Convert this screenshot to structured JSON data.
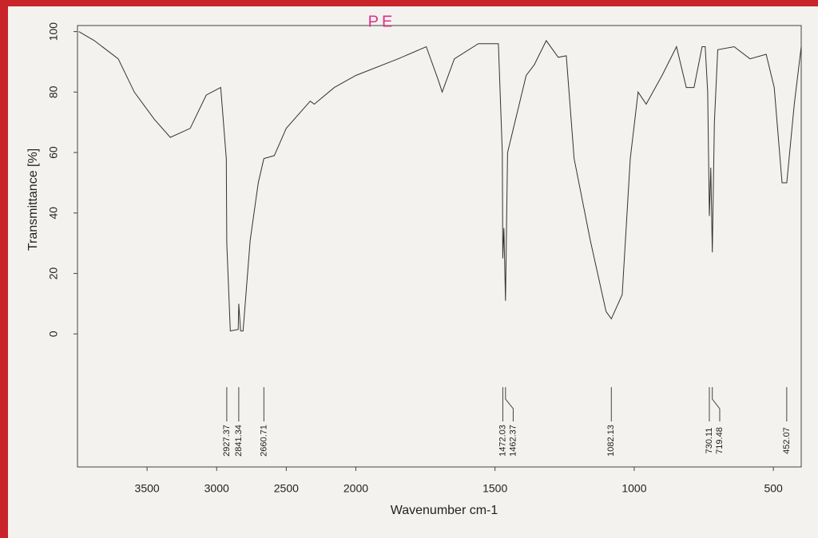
{
  "chart_data": {
    "type": "line",
    "title": "PE",
    "x_label": "Wavenumber cm-1",
    "y_label": "Transmittance [%]",
    "x": [
      3990,
      3879,
      3707,
      3592,
      3448,
      3333,
      3190,
      3075,
      2971,
      2931,
      2927.37,
      2902,
      2845,
      2841.34,
      2828,
      2810,
      2759,
      2701,
      2660.71,
      2586,
      2500,
      2328,
      2299,
      2155,
      2000,
      1848,
      1747,
      1704,
      1690,
      1646,
      1560,
      1488,
      1474,
      1472.03,
      1468,
      1462.37,
      1455,
      1388,
      1359,
      1316,
      1273,
      1244,
      1216,
      1158,
      1101,
      1082.13,
      1043,
      1014,
      986,
      957,
      900,
      848,
      813,
      785,
      756,
      745,
      736,
      730.11,
      725,
      719.48,
      712,
      700,
      641,
      584,
      526,
      497,
      469,
      452.07,
      425,
      400
    ],
    "values": [
      100,
      97,
      91,
      80,
      71,
      65,
      68,
      79,
      81.5,
      58,
      30,
      1,
      1.5,
      10,
      1,
      1,
      31,
      50,
      58,
      59,
      68,
      77,
      76,
      81.5,
      85.5,
      91,
      95,
      84,
      80,
      91,
      96,
      96,
      60,
      25,
      35,
      11,
      60,
      85.5,
      89,
      97,
      91.5,
      92,
      58,
      31,
      7.4,
      5,
      13,
      58,
      80,
      76,
      85.5,
      95,
      81.5,
      81.5,
      95,
      95,
      80,
      39,
      55,
      27,
      70,
      94,
      95,
      91,
      92.5,
      81.5,
      50,
      50,
      76,
      95
    ],
    "color": "#333333",
    "xlim": [
      4000,
      400
    ],
    "x_scale_break": 2000,
    "x_scale_factor": 2,
    "xticks": [
      3500,
      3000,
      2500,
      2000,
      1500,
      1000,
      500
    ],
    "ylim": [
      -44,
      102
    ],
    "yticks": [
      0,
      20,
      40,
      60,
      80,
      100
    ],
    "peak_labels": [
      2927.37,
      2841.34,
      2660.71,
      1472.03,
      1462.37,
      1082.13,
      730.11,
      719.48,
      452.07
    ]
  }
}
